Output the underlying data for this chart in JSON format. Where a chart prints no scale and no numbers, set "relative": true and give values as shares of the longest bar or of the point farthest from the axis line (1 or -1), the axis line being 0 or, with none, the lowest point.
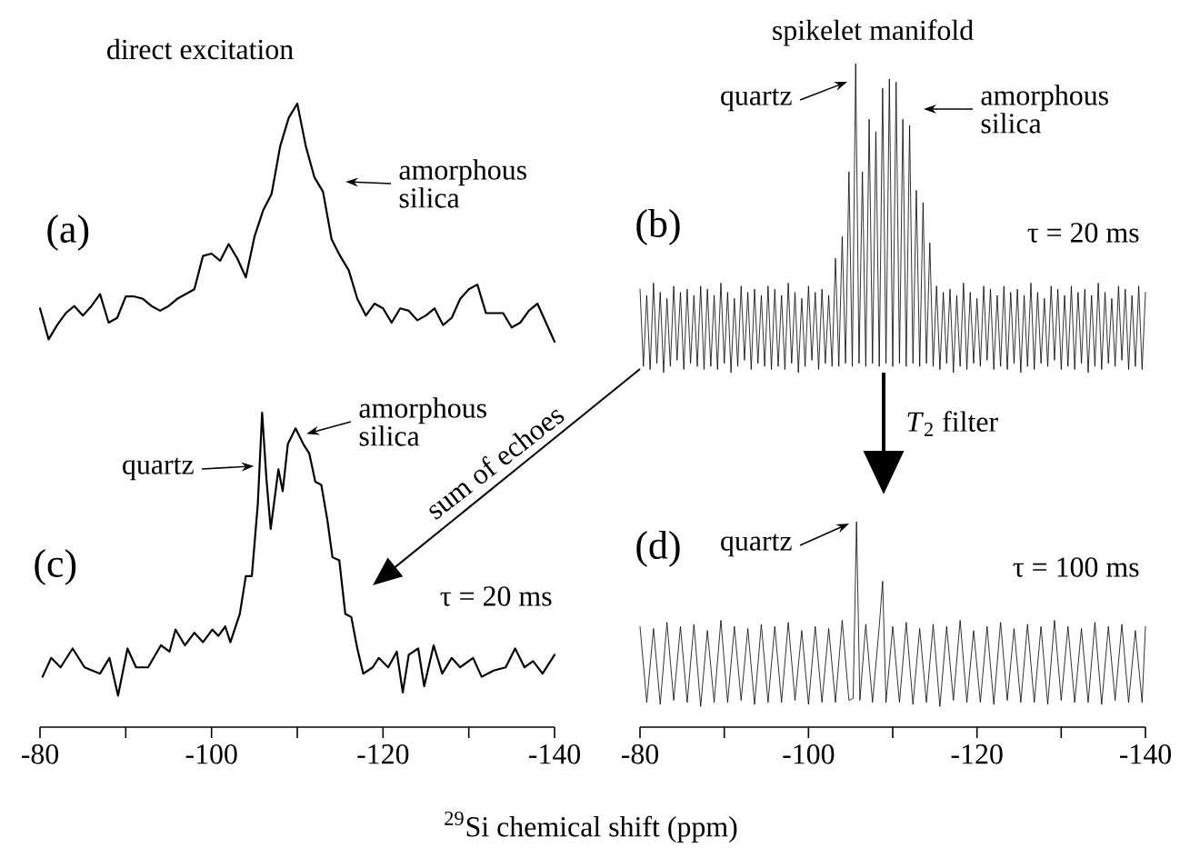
{
  "chart_data": [
    {
      "type": "line",
      "title": "direct excitation",
      "relative": true,
      "color": "#000000",
      "tick_labels": false,
      "categories": [
        null,
        null,
        null,
        null,
        null,
        null,
        null,
        null,
        null,
        null,
        null,
        null,
        null,
        null,
        null,
        null,
        null,
        null,
        null,
        null,
        null,
        null,
        null,
        null,
        null,
        null,
        null,
        null,
        null,
        null,
        null,
        null,
        null,
        null,
        null,
        null,
        null,
        null,
        null,
        null,
        null,
        null,
        null,
        null,
        null,
        null,
        null,
        null,
        null,
        null,
        null,
        null,
        null,
        null,
        null,
        null,
        null,
        null,
        null,
        null,
        null
      ],
      "values": [
        0.14,
        0.01,
        0.07,
        0.12,
        0.15,
        0.11,
        0.15,
        0.2,
        0.08,
        0.1,
        0.19,
        0.19,
        0.18,
        0.15,
        0.13,
        0.15,
        0.18,
        0.2,
        0.22,
        0.36,
        0.37,
        0.34,
        0.41,
        0.35,
        0.27,
        0.44,
        0.55,
        0.62,
        0.82,
        0.94,
        1.0,
        0.82,
        0.69,
        0.63,
        0.43,
        0.36,
        0.3,
        0.18,
        0.11,
        0.16,
        0.14,
        0.08,
        0.14,
        0.13,
        0.09,
        0.11,
        0.14,
        0.07,
        0.1,
        0.18,
        0.22,
        0.24,
        0.12,
        0.12,
        0.12,
        0.06,
        0.08,
        0.13,
        0.16,
        0.08,
        0.0
      ],
      "annotations": [
        "(a)",
        "amorphous silica"
      ]
    },
    {
      "type": "line",
      "title": "spikelet manifold",
      "relative": true,
      "color": "#000000",
      "tick_labels": false,
      "categories": [
        null,
        null,
        null,
        null,
        null,
        null,
        null,
        null,
        null,
        null,
        null,
        null,
        null,
        null,
        null,
        null,
        null,
        null,
        null,
        null,
        null,
        null,
        null,
        null,
        null,
        null,
        null,
        null,
        null,
        null,
        null,
        null,
        null,
        null,
        null,
        null,
        null,
        null,
        null,
        null,
        null,
        null,
        null,
        null,
        null,
        null,
        null,
        null,
        null,
        null,
        null,
        null,
        null,
        null,
        null,
        null,
        null,
        null,
        null,
        null,
        null,
        null,
        null,
        null,
        null,
        null,
        null,
        null,
        null,
        null,
        null,
        null,
        null,
        null,
        null,
        null,
        null,
        null,
        null,
        null,
        null,
        null,
        null,
        null,
        null,
        null,
        null,
        null,
        null,
        null,
        null,
        null,
        null,
        null,
        null,
        null,
        null,
        null,
        null,
        null,
        null,
        null,
        null,
        null,
        null,
        null,
        null,
        null,
        null,
        null,
        null,
        null,
        null,
        null,
        null,
        null,
        null,
        null,
        null,
        null,
        null,
        null,
        null,
        null,
        null,
        null,
        null,
        null,
        null,
        null,
        null,
        null,
        null,
        null,
        null,
        null,
        null,
        null,
        null,
        null,
        null,
        null,
        null,
        null,
        null,
        null,
        null,
        null,
        null,
        null,
        null
      ],
      "values": [
        0.27,
        0.02,
        0.25,
        0.01,
        0.29,
        0.03,
        0.26,
        0.0,
        0.24,
        0.02,
        0.28,
        0.04,
        0.26,
        0.01,
        0.27,
        0.03,
        0.25,
        0.02,
        0.28,
        0.01,
        0.27,
        0.02,
        0.25,
        0.01,
        0.29,
        0.03,
        0.26,
        0.0,
        0.24,
        0.02,
        0.28,
        0.04,
        0.26,
        0.01,
        0.27,
        0.03,
        0.25,
        0.02,
        0.28,
        0.01,
        0.27,
        0.02,
        0.25,
        0.01,
        0.29,
        0.03,
        0.26,
        0.0,
        0.24,
        0.02,
        0.28,
        0.04,
        0.26,
        0.01,
        0.27,
        0.03,
        0.25,
        0.02,
        0.37,
        0.02,
        0.44,
        0.03,
        0.65,
        0.02,
        1.0,
        0.03,
        0.65,
        0.02,
        0.82,
        0.03,
        0.78,
        0.02,
        0.92,
        0.03,
        0.95,
        0.02,
        0.94,
        0.03,
        0.82,
        0.02,
        0.8,
        0.03,
        0.59,
        0.02,
        0.55,
        0.03,
        0.42,
        0.02,
        0.28,
        0.01,
        0.26,
        0.03,
        0.27,
        0.0,
        0.25,
        0.02,
        0.29,
        0.01,
        0.26,
        0.03,
        0.24,
        0.02,
        0.28,
        0.04,
        0.27,
        0.01,
        0.25,
        0.02,
        0.28,
        0.01,
        0.26,
        0.03,
        0.27,
        0.0,
        0.25,
        0.02,
        0.29,
        0.01,
        0.26,
        0.03,
        0.24,
        0.02,
        0.28,
        0.04,
        0.27,
        0.01,
        0.25,
        0.02,
        0.28,
        0.01,
        0.26,
        0.03,
        0.27,
        0.0,
        0.25,
        0.02,
        0.29,
        0.01,
        0.26,
        0.03,
        0.24,
        0.02,
        0.28,
        0.04,
        0.27,
        0.01,
        0.25,
        0.02,
        0.28,
        0.01,
        0.26
      ],
      "annotations": [
        "(b)",
        "quartz",
        "amorphous silica",
        "τ = 20 ms"
      ]
    },
    {
      "type": "line",
      "xlabel": "$^{29}$Si chemical shift (ppm)",
      "relative": true,
      "color": "#000000",
      "xlim": [
        -80,
        -140
      ],
      "tick_labels": "x",
      "xticks": [
        -80,
        {
          "value": -90,
          "label": null
        },
        -100,
        {
          "value": -110,
          "label": null
        },
        -120,
        {
          "value": -130,
          "label": null
        },
        -140
      ],
      "x": [
        -80.3,
        -81.3,
        -82.4,
        -83.8,
        -85.2,
        -87.0,
        -88.1,
        -89.1,
        -90.2,
        -91.2,
        -92.6,
        -94.1,
        -95.1,
        -95.8,
        -96.9,
        -98.0,
        -99.0,
        -100.1,
        -100.8,
        -101.6,
        -102.2,
        -103.3,
        -104.0,
        -104.7,
        -105.4,
        -105.9,
        -106.4,
        -106.9,
        -107.8,
        -108.3,
        -108.9,
        -109.8,
        -110.7,
        -111.4,
        -112.1,
        -112.8,
        -113.5,
        -114.1,
        -114.9,
        -115.6,
        -116.3,
        -117.0,
        -117.7,
        -118.8,
        -119.5,
        -120.6,
        -121.6,
        -122.3,
        -123.0,
        -124.1,
        -124.8,
        -125.9,
        -126.9,
        -128.0,
        -129.0,
        -130.5,
        -131.5,
        -132.9,
        -134.3,
        -135.4,
        -136.5,
        -137.5,
        -138.6,
        -140.0
      ],
      "values": [
        0.16,
        0.22,
        0.19,
        0.25,
        0.19,
        0.17,
        0.22,
        0.1,
        0.25,
        0.19,
        0.19,
        0.26,
        0.24,
        0.31,
        0.26,
        0.3,
        0.27,
        0.31,
        0.29,
        0.32,
        0.27,
        0.36,
        0.48,
        0.48,
        0.71,
        1.0,
        0.79,
        0.63,
        0.82,
        0.75,
        0.9,
        0.95,
        0.9,
        0.87,
        0.78,
        0.77,
        0.66,
        0.54,
        0.53,
        0.36,
        0.35,
        0.25,
        0.17,
        0.19,
        0.22,
        0.19,
        0.24,
        0.11,
        0.23,
        0.25,
        0.13,
        0.26,
        0.17,
        0.22,
        0.19,
        0.22,
        0.16,
        0.18,
        0.19,
        0.25,
        0.19,
        0.21,
        0.17,
        0.23
      ],
      "annotations": [
        "(c)",
        {
          "text": "quartz",
          "x": -105.6,
          "y": 0.83
        },
        {
          "text": "amorphous silica",
          "x": -109.8,
          "y": 0.95
        },
        "τ = 20 ms",
        "sum of echoes"
      ]
    },
    {
      "type": "line",
      "relative": true,
      "color": "#000000",
      "xlim": [
        -80,
        -140
      ],
      "tick_labels": "x",
      "xticks": [
        -80,
        {
          "value": -90,
          "label": null
        },
        -100,
        {
          "value": -110,
          "label": null
        },
        -120,
        {
          "value": -130,
          "label": null
        },
        -140
      ],
      "x": [
        -80.0,
        -80.8,
        -81.6,
        -82.4,
        -83.2,
        -84.0,
        -84.8,
        -85.6,
        -86.4,
        -87.2,
        -88.0,
        -88.8,
        -89.6,
        -90.4,
        -91.2,
        -92.0,
        -92.8,
        -93.6,
        -94.4,
        -95.2,
        -96.0,
        -96.8,
        -97.6,
        -98.4,
        -99.2,
        -100.0,
        -100.8,
        -101.6,
        -102.4,
        -103.2,
        -104.0,
        -104.8,
        -105.3,
        -105.7,
        -106.1,
        -106.8,
        -107.6,
        -108.4,
        -108.8,
        -109.2,
        -110.0,
        -110.8,
        -111.6,
        -112.4,
        -113.2,
        -114.0,
        -114.8,
        -115.6,
        -116.4,
        -117.2,
        -118.0,
        -118.8,
        -119.6,
        -120.4,
        -121.2,
        -122.0,
        -122.8,
        -123.6,
        -124.4,
        -125.2,
        -126.0,
        -126.8,
        -127.6,
        -128.4,
        -129.2,
        -130.0,
        -130.8,
        -131.6,
        -132.4,
        -133.2,
        -134.0,
        -134.8,
        -135.6,
        -136.4,
        -137.2,
        -138.0,
        -138.8,
        -139.6,
        -140.0
      ],
      "values": [
        0.49,
        0.12,
        0.48,
        0.11,
        0.51,
        0.13,
        0.49,
        0.12,
        0.5,
        0.1,
        0.47,
        0.12,
        0.52,
        0.12,
        0.49,
        0.13,
        0.48,
        0.11,
        0.5,
        0.12,
        0.49,
        0.12,
        0.51,
        0.13,
        0.47,
        0.11,
        0.49,
        0.12,
        0.48,
        0.12,
        0.52,
        0.13,
        0.14,
        1.0,
        0.13,
        0.5,
        0.12,
        0.49,
        0.71,
        0.12,
        0.49,
        0.12,
        0.51,
        0.11,
        0.48,
        0.12,
        0.5,
        0.1,
        0.49,
        0.13,
        0.52,
        0.12,
        0.47,
        0.12,
        0.49,
        0.11,
        0.51,
        0.13,
        0.48,
        0.12,
        0.5,
        0.12,
        0.49,
        0.11,
        0.52,
        0.13,
        0.49,
        0.12,
        0.48,
        0.12,
        0.51,
        0.11,
        0.49,
        0.13,
        0.5,
        0.12,
        0.47,
        0.12,
        0.49
      ],
      "annotations": [
        "(d)",
        {
          "text": "quartz",
          "x": -105.7,
          "y": 1.0
        },
        "τ = 100 ms",
        "*T*$_{2}$ filter"
      ]
    }
  ]
}
